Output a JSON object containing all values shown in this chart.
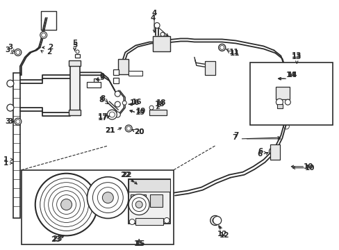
{
  "bg_color": "#ffffff",
  "lc": "#2a2a2a",
  "figsize": [
    4.89,
    3.6
  ],
  "dpi": 100,
  "lw_main": 1.3,
  "lw_thin": 0.8,
  "lw_med": 1.0,
  "font_size": 7.5
}
